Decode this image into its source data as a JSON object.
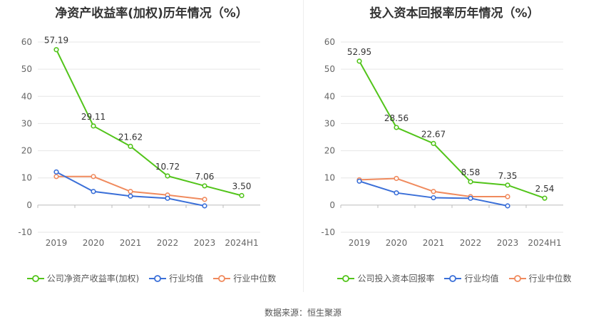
{
  "source": "数据来源：恒生聚源",
  "chart_data": [
    {
      "type": "line",
      "title": "净资产收益率(加权)历年情况（%）",
      "categories": [
        "2019",
        "2020",
        "2021",
        "2022",
        "2023",
        "2024H1"
      ],
      "ylim": [
        -10,
        60
      ],
      "yticks": [
        -10,
        0,
        10,
        20,
        30,
        40,
        50,
        60
      ],
      "grid": true,
      "legend_position": "bottom",
      "series": [
        {
          "name": "公司净资产收益率(加权)",
          "color": "#52c41a",
          "labeled": true,
          "values": [
            57.19,
            29.11,
            21.62,
            10.72,
            7.06,
            3.5
          ],
          "labels": [
            "57.19",
            "29.11",
            "21.62",
            "10.72",
            "7.06",
            "3.50"
          ]
        },
        {
          "name": "行业均值",
          "color": "#3a6fd8",
          "labeled": false,
          "values": [
            12.2,
            5.0,
            3.3,
            2.5,
            -0.3,
            null
          ]
        },
        {
          "name": "行业中位数",
          "color": "#f08a5d",
          "labeled": false,
          "values": [
            10.5,
            10.5,
            5.0,
            3.7,
            2.1,
            null
          ]
        }
      ]
    },
    {
      "type": "line",
      "title": "投入资本回报率历年情况（%）",
      "categories": [
        "2019",
        "2020",
        "2021",
        "2022",
        "2023",
        "2024H1"
      ],
      "ylim": [
        -10,
        60
      ],
      "yticks": [
        -10,
        0,
        10,
        20,
        30,
        40,
        50,
        60
      ],
      "grid": true,
      "legend_position": "bottom",
      "series": [
        {
          "name": "公司投入资本回报率",
          "color": "#52c41a",
          "labeled": true,
          "values": [
            52.95,
            28.56,
            22.67,
            8.58,
            7.35,
            2.54
          ],
          "labels": [
            "52.95",
            "28.56",
            "22.67",
            "8.58",
            "7.35",
            "2.54"
          ]
        },
        {
          "name": "行业均值",
          "color": "#3a6fd8",
          "labeled": false,
          "values": [
            8.8,
            4.5,
            2.7,
            2.5,
            -0.3,
            null
          ]
        },
        {
          "name": "行业中位数",
          "color": "#f08a5d",
          "labeled": false,
          "values": [
            9.3,
            9.8,
            5.0,
            3.1,
            3.1,
            null
          ]
        }
      ]
    }
  ]
}
